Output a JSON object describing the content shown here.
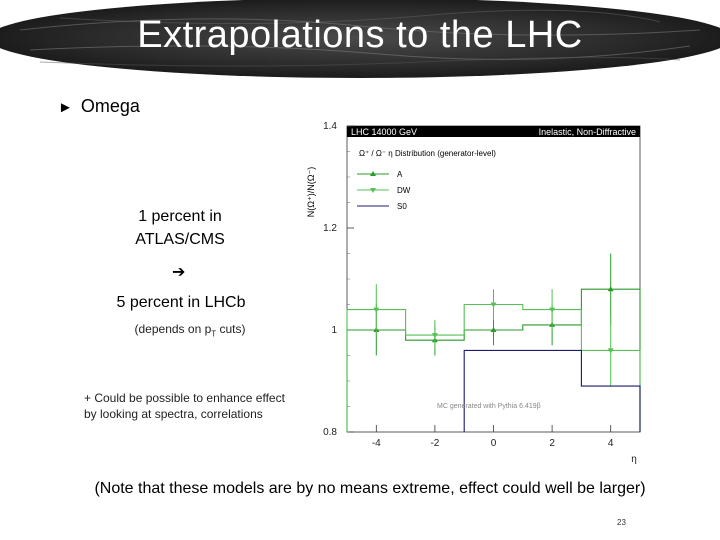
{
  "slide": {
    "title": "Extrapolations to the LHC",
    "bullet": "Omega",
    "note_line1": "1 percent in",
    "note_line2": "ATLAS/CMS",
    "note_5pct": "5 percent in LHCb",
    "note_depends_pre": "(depends on p",
    "note_depends_sub": "T",
    "note_depends_post": " cuts)",
    "note_enhance_line1": "+ Could be possible to enhance effect",
    "note_enhance_line2": "by looking at spectra, correlations",
    "bottom_note": "(Note that these models are by no means extreme, effect could well be larger)",
    "page_number": "23"
  },
  "chart_data": {
    "type": "line",
    "header_left": "LHC 14000 GeV",
    "header_right": "Inelastic, Non-Diffractive",
    "subtitle": "Ω⁺ / Ω⁻ η Distribution (generator-level)",
    "ylabel": "N(Ω⁺)/N(Ω⁻)",
    "xlabel": "η",
    "footnote": "MC generated with Pythia 6.419β",
    "xlim": [
      -5,
      5
    ],
    "ylim": [
      0.8,
      1.4
    ],
    "xticks": [
      "-4",
      "-2",
      "0",
      "2",
      "4"
    ],
    "yticks": [
      "0.8",
      "1",
      "1.2",
      "1.4"
    ],
    "bin_edges": [
      -5,
      -4,
      -3,
      -2,
      -1,
      0,
      1,
      2,
      3,
      4,
      5
    ],
    "series": [
      {
        "name": "A",
        "color": "#2a9a2a",
        "marker": "up",
        "values": [
          1.0,
          1.0,
          0.98,
          0.98,
          1.0,
          1.0,
          1.01,
          1.01,
          1.08,
          1.08
        ],
        "points": [
          {
            "x": -4,
            "y": 1.0,
            "err": 0.05
          },
          {
            "x": -2,
            "y": 0.98,
            "err": 0.03
          },
          {
            "x": 0,
            "y": 1.0,
            "err": 0.03
          },
          {
            "x": 2,
            "y": 1.01,
            "err": 0.04
          },
          {
            "x": 4,
            "y": 1.08,
            "err": 0.07
          }
        ]
      },
      {
        "name": "DW",
        "color": "#55c055",
        "marker": "down",
        "values": [
          1.04,
          1.04,
          0.99,
          0.99,
          1.05,
          1.05,
          1.04,
          1.04,
          0.96,
          0.96
        ],
        "points": [
          {
            "x": -4,
            "y": 1.04,
            "err": 0.05
          },
          {
            "x": -2,
            "y": 0.99,
            "err": 0.03
          },
          {
            "x": 0,
            "y": 1.05,
            "err": 0.03
          },
          {
            "x": 2,
            "y": 1.04,
            "err": 0.04
          },
          {
            "x": 4,
            "y": 0.96,
            "err": 0.07
          }
        ]
      },
      {
        "name": "S0",
        "color": "#1a1a6e",
        "marker": "none",
        "values": [
          null,
          null,
          null,
          null,
          0.96,
          0.96,
          0.96,
          0.96,
          0.89,
          0.89
        ],
        "points": []
      }
    ]
  }
}
